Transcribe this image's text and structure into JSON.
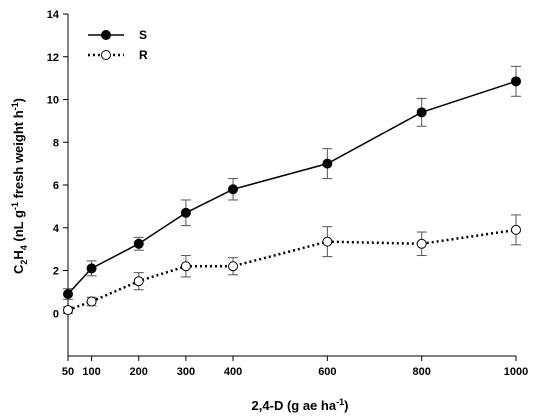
{
  "chart_data": {
    "type": "line",
    "title": "",
    "xlabel": {
      "main": "2,4-D (g ae ha",
      "sup": "-1",
      "end": ")"
    },
    "ylabel": {
      "c": "C",
      "sub1": "2",
      "h": "H",
      "sub2": "4",
      "mid": " (nL g",
      "sup1": "-1",
      "fw": " fresh weight h",
      "sup2": "-1",
      "end": ")"
    },
    "x_ticks": [
      50,
      100,
      200,
      300,
      400,
      600,
      800,
      1000
    ],
    "y_ticks": [
      0,
      2,
      4,
      6,
      8,
      10,
      12,
      14
    ],
    "xlim": [
      50,
      1000
    ],
    "ylim": [
      -2,
      14
    ],
    "grid": false,
    "legend_position": "top-left",
    "x": [
      50,
      100,
      200,
      300,
      400,
      600,
      800,
      1000
    ],
    "series": [
      {
        "name": "S",
        "values": [
          0.9,
          2.1,
          3.25,
          4.7,
          5.8,
          7.0,
          9.4,
          10.85
        ],
        "errors": [
          0.25,
          0.35,
          0.3,
          0.6,
          0.5,
          0.7,
          0.65,
          0.7
        ],
        "marker": "filled-circle",
        "line_style": "solid",
        "color": "#000000"
      },
      {
        "name": "R",
        "values": [
          0.15,
          0.55,
          1.5,
          2.2,
          2.2,
          3.35,
          3.25,
          3.9
        ],
        "errors": [
          0.15,
          0.2,
          0.4,
          0.5,
          0.4,
          0.7,
          0.55,
          0.7
        ],
        "marker": "open-circle",
        "line_style": "dotted",
        "color": "#000000"
      }
    ]
  }
}
